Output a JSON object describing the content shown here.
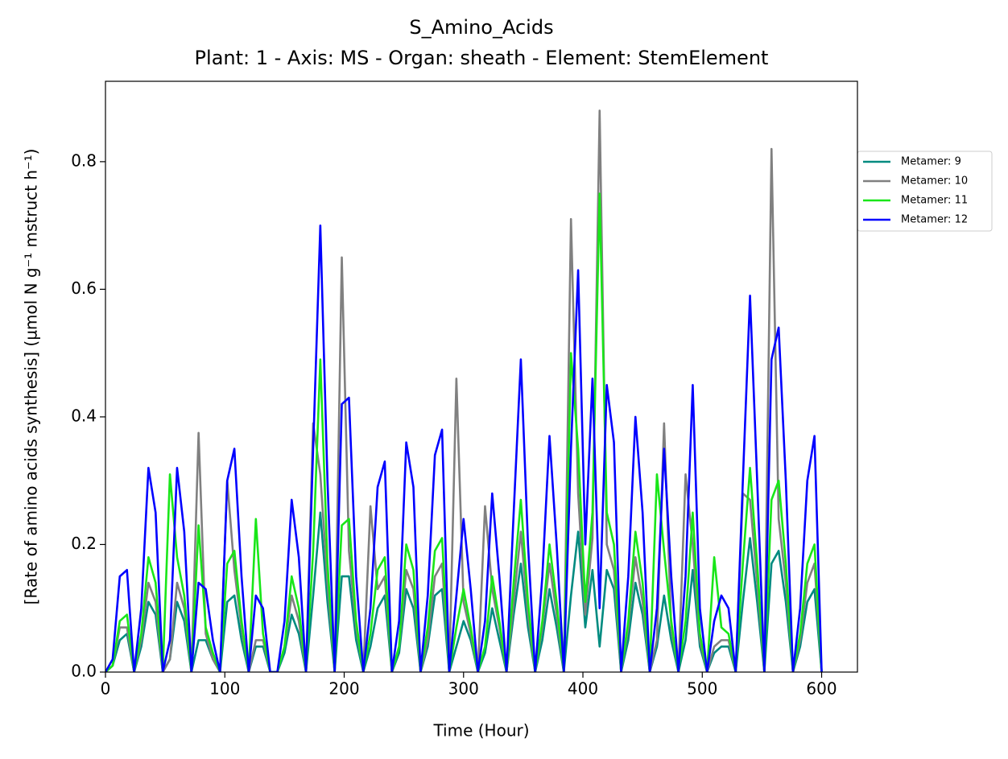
{
  "chart_data": {
    "type": "line",
    "title": "S_Amino_Acids",
    "subtitle": "Plant: 1 - Axis: MS - Organ: sheath - Element: StemElement",
    "xlabel": "Time (Hour)",
    "ylabel": "[Rate of amino acids synthesis] (µmol N g⁻¹ mstruct h⁻¹)",
    "xlim": [
      0,
      630
    ],
    "ylim": [
      0,
      0.926
    ],
    "xticks": [
      0,
      100,
      200,
      300,
      400,
      500,
      600
    ],
    "yticks": [
      {
        "value": 0,
        "label": "0.0"
      },
      0.2,
      0.4,
      0.6,
      0.8
    ],
    "grid": false,
    "legend": "outside right",
    "x": [
      0,
      6,
      12,
      18,
      24,
      30,
      36,
      42,
      48,
      54,
      60,
      66,
      72,
      78,
      84,
      90,
      96,
      102,
      108,
      114,
      120,
      126,
      132,
      138,
      144,
      150,
      156,
      162,
      168,
      174,
      180,
      186,
      192,
      198,
      204,
      210,
      216,
      222,
      228,
      234,
      240,
      246,
      252,
      258,
      264,
      270,
      276,
      282,
      288,
      294,
      300,
      306,
      312,
      318,
      324,
      330,
      336,
      342,
      348,
      354,
      360,
      366,
      372,
      378,
      384,
      390,
      396,
      402,
      408,
      414,
      420,
      426,
      432,
      438,
      444,
      450,
      456,
      462,
      468,
      474,
      480,
      486,
      492,
      498,
      504,
      510,
      516,
      522,
      528,
      534,
      540,
      546,
      552,
      558,
      564,
      570,
      576,
      582,
      588,
      594,
      600
    ],
    "series": [
      {
        "name": "Metamer: 9",
        "color": "#008b80",
        "values": [
          0,
          0.01,
          0.05,
          0.06,
          0,
          0.04,
          0.11,
          0.09,
          0,
          0.02,
          0.11,
          0.08,
          0,
          0.05,
          0.05,
          0.02,
          0,
          0.11,
          0.12,
          0.05,
          0,
          0.04,
          0.04,
          0,
          0,
          0.03,
          0.09,
          0.06,
          0,
          0.12,
          0.25,
          0.11,
          0,
          0.15,
          0.15,
          0.05,
          0,
          0.04,
          0.1,
          0.12,
          0,
          0.03,
          0.13,
          0.1,
          0,
          0.04,
          0.12,
          0.13,
          0,
          0.04,
          0.08,
          0.05,
          0,
          0.03,
          0.1,
          0.05,
          0,
          0.09,
          0.17,
          0.07,
          0,
          0.05,
          0.13,
          0.07,
          0,
          0.12,
          0.22,
          0.07,
          0.16,
          0.04,
          0.16,
          0.13,
          0,
          0.05,
          0.14,
          0.09,
          0,
          0.04,
          0.12,
          0.05,
          0,
          0.05,
          0.16,
          0.04,
          0,
          0.03,
          0.04,
          0.04,
          0,
          0.11,
          0.21,
          0.11,
          0,
          0.17,
          0.19,
          0.11,
          0,
          0.04,
          0.11,
          0.13,
          0
        ]
      },
      {
        "name": "Metamer: 10",
        "color": "#808080",
        "values": [
          0,
          0.01,
          0.07,
          0.07,
          0,
          0.05,
          0.14,
          0.11,
          0,
          0.02,
          0.14,
          0.1,
          0,
          0.375,
          0.06,
          0.02,
          0,
          0.3,
          0.16,
          0.07,
          0,
          0.05,
          0.05,
          0,
          0,
          0.04,
          0.12,
          0.08,
          0,
          0.39,
          0.31,
          0.14,
          0,
          0.65,
          0.19,
          0.07,
          0,
          0.26,
          0.13,
          0.15,
          0,
          0.04,
          0.16,
          0.13,
          0,
          0.05,
          0.15,
          0.17,
          0,
          0.46,
          0.11,
          0.06,
          0,
          0.26,
          0.13,
          0.07,
          0,
          0.11,
          0.22,
          0.09,
          0,
          0.07,
          0.17,
          0.09,
          0,
          0.71,
          0.28,
          0.09,
          0.21,
          0.88,
          0.2,
          0.16,
          0,
          0.07,
          0.18,
          0.11,
          0,
          0.05,
          0.39,
          0.07,
          0,
          0.31,
          0.2,
          0.05,
          0,
          0.04,
          0.05,
          0.05,
          0,
          0.28,
          0.27,
          0.14,
          0,
          0.82,
          0.24,
          0.14,
          0,
          0.05,
          0.14,
          0.17,
          0
        ]
      },
      {
        "name": "Metamer: 11",
        "color": "#19e619",
        "values": [
          0,
          0.01,
          0.08,
          0.09,
          0,
          0.06,
          0.18,
          0.14,
          0,
          0.31,
          0.18,
          0.12,
          0,
          0.23,
          0.07,
          0.03,
          0,
          0.17,
          0.19,
          0.08,
          0,
          0.24,
          0.06,
          0,
          0,
          0.04,
          0.15,
          0.1,
          0,
          0.19,
          0.49,
          0.17,
          0,
          0.23,
          0.24,
          0.08,
          0,
          0.06,
          0.16,
          0.18,
          0,
          0.04,
          0.2,
          0.16,
          0,
          0.07,
          0.19,
          0.21,
          0,
          0.07,
          0.13,
          0.07,
          0,
          0.04,
          0.15,
          0.08,
          0,
          0.14,
          0.27,
          0.11,
          0,
          0.08,
          0.2,
          0.11,
          0,
          0.5,
          0.35,
          0.11,
          0.25,
          0.75,
          0.25,
          0.2,
          0,
          0.08,
          0.22,
          0.14,
          0,
          0.31,
          0.19,
          0.08,
          0,
          0.08,
          0.25,
          0.06,
          0,
          0.18,
          0.07,
          0.06,
          0,
          0.17,
          0.32,
          0.17,
          0,
          0.27,
          0.3,
          0.17,
          0,
          0.06,
          0.17,
          0.2,
          0
        ]
      },
      {
        "name": "Metamer: 12",
        "color": "#0000ff",
        "values": [
          0,
          0.02,
          0.15,
          0.16,
          0,
          0.1,
          0.32,
          0.25,
          0,
          0.05,
          0.32,
          0.22,
          0,
          0.14,
          0.13,
          0.05,
          0,
          0.3,
          0.35,
          0.15,
          0,
          0.12,
          0.1,
          0,
          0,
          0.08,
          0.27,
          0.18,
          0,
          0.35,
          0.7,
          0.3,
          0,
          0.42,
          0.43,
          0.15,
          0,
          0.1,
          0.29,
          0.33,
          0,
          0.08,
          0.36,
          0.29,
          0,
          0.12,
          0.34,
          0.38,
          0,
          0.12,
          0.24,
          0.13,
          0,
          0.08,
          0.28,
          0.15,
          0,
          0.25,
          0.49,
          0.2,
          0,
          0.15,
          0.37,
          0.2,
          0,
          0.35,
          0.63,
          0.2,
          0.46,
          0.1,
          0.45,
          0.36,
          0,
          0.15,
          0.4,
          0.25,
          0,
          0.1,
          0.35,
          0.15,
          0,
          0.15,
          0.45,
          0.1,
          0,
          0.08,
          0.12,
          0.1,
          0,
          0.3,
          0.59,
          0.3,
          0,
          0.49,
          0.54,
          0.3,
          0,
          0.1,
          0.3,
          0.37,
          0
        ]
      }
    ]
  }
}
